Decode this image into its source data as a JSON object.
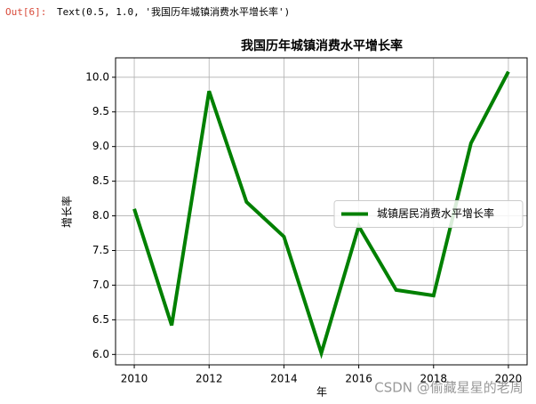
{
  "output": {
    "prompt": "Out[6]:",
    "text": "Text(0.5, 1.0, '我国历年城镇消费水平增长率')"
  },
  "watermark": "CSDN @偷藏星星的老周",
  "chart_data": {
    "type": "line",
    "title": "我国历年城镇消费水平增长率",
    "x_label": "年",
    "y_label": "增长率",
    "x": [
      2010,
      2011,
      2012,
      2013,
      2014,
      2015,
      2016,
      2017,
      2018,
      2019,
      2020
    ],
    "series": [
      {
        "name": "城镇居民消费水平增长率",
        "color": "#008000",
        "values": [
          8.1,
          6.42,
          9.8,
          8.2,
          7.7,
          6.02,
          7.85,
          6.93,
          6.85,
          9.05,
          10.08
        ]
      }
    ],
    "xlim": [
      2009.5,
      2020.5
    ],
    "ylim": [
      5.85,
      10.28
    ],
    "xticks": [
      2010,
      2012,
      2014,
      2016,
      2018,
      2020
    ],
    "yticks": [
      {
        "value": 6,
        "label": "6.0"
      },
      {
        "value": 6.5,
        "label": "6.5"
      },
      {
        "value": 7,
        "label": "7.0"
      },
      {
        "value": 7.5,
        "label": "7.5"
      },
      {
        "value": 8,
        "label": "8.0"
      },
      {
        "value": 8.5,
        "label": "8.5"
      },
      {
        "value": 9,
        "label": "9.0"
      },
      {
        "value": 9.5,
        "label": "9.5"
      },
      {
        "value": 10,
        "label": "10.0"
      }
    ],
    "grid": true,
    "legend": "center right"
  }
}
